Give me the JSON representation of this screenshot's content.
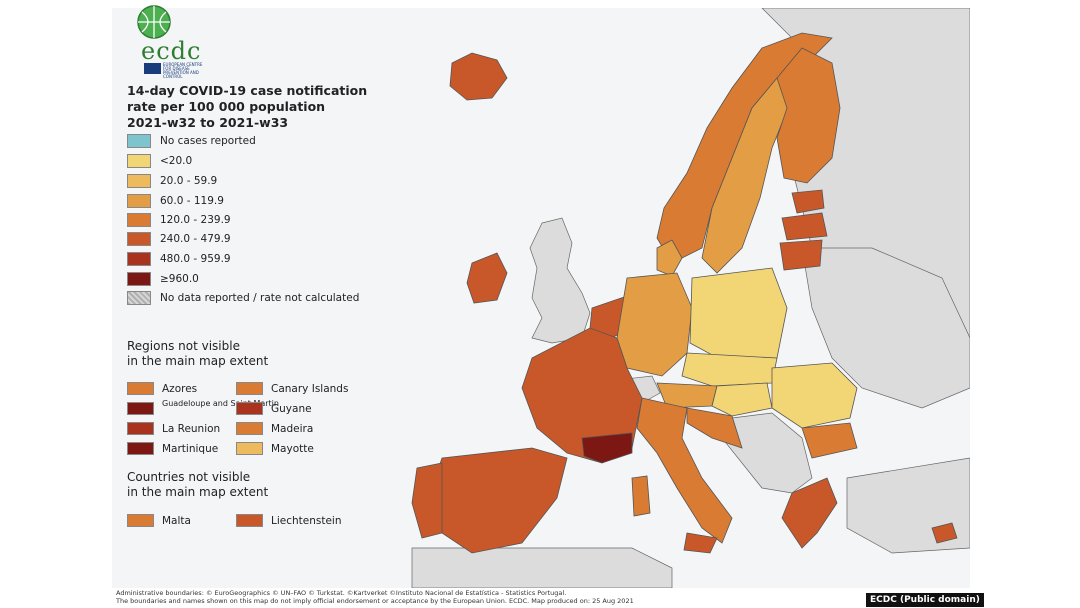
{
  "logo": {
    "text": "ecdc",
    "subtitle": "EUROPEAN CENTRE FOR DISEASE PREVENTION AND CONTROL",
    "icon": "globe-icon"
  },
  "title": {
    "line1": "14-day COVID-19 case notification",
    "line2": "rate per 100 000 population",
    "line3": "2021-w32 to 2021-w33"
  },
  "legend": [
    {
      "label": "No cases reported",
      "color": "#7ec4cf"
    },
    {
      "label": "<20.0",
      "color": "#f2d675"
    },
    {
      "label": "20.0 - 59.9",
      "color": "#edbb5d"
    },
    {
      "label": "60.0 - 119.9",
      "color": "#e39d45"
    },
    {
      "label": "120.0 - 239.9",
      "color": "#d97b33"
    },
    {
      "label": "240.0 - 479.9",
      "color": "#c8582a"
    },
    {
      "label": "480.0 - 959.9",
      "color": "#aa3320"
    },
    {
      "label": "≥960.0",
      "color": "#7d1714"
    },
    {
      "label": "No data reported / rate not calculated",
      "color": "hatch"
    }
  ],
  "regions_title": {
    "line1": "Regions not visible",
    "line2": "in the main map extent"
  },
  "regions": [
    {
      "label": "Azores",
      "color": "#d97b33"
    },
    {
      "label": "Canary Islands",
      "color": "#d97b33"
    },
    {
      "label": "Guadeloupe and Saint Martin",
      "color": "#7d1714"
    },
    {
      "label": "Guyane",
      "color": "#aa3320"
    },
    {
      "label": "La Reunion",
      "color": "#aa3320"
    },
    {
      "label": "Madeira",
      "color": "#d97b33"
    },
    {
      "label": "Martinique",
      "color": "#7d1714"
    },
    {
      "label": "Mayotte",
      "color": "#edbb5d"
    }
  ],
  "countries_title": {
    "line1": "Countries not visible",
    "line2": "in the main map extent"
  },
  "countries": [
    {
      "label": "Malta",
      "color": "#d97b33"
    },
    {
      "label": "Liechtenstein",
      "color": "#c8582a"
    }
  ],
  "footer": {
    "line1": "Administrative boundaries: © EuroGeographics © UN–FAO © Turkstat. ©Kartverket ©Instituto Nacional de Estatística - Statistics Portugal.",
    "line2": "The boundaries and names shown on this map do not imply official endorsement or acceptance by the European Union. ECDC. Map produced on: 25 Aug 2021"
  },
  "credit": "ECDC (Public domain)",
  "colors": {
    "sea": "#ffffff",
    "land_non_eu": "#dcdcdc",
    "border": "#555555"
  }
}
